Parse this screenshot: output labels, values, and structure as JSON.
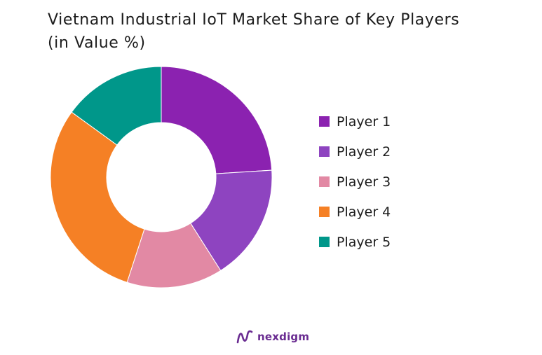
{
  "title": {
    "line1": "Vietnam Industrial IoT Market Share of Key Players",
    "line2": "(in Value %)"
  },
  "chart_data": {
    "type": "pie",
    "donut": true,
    "title": "Vietnam Industrial IoT Market Share of Key Players (in Value %)",
    "categories": [
      "Player 1",
      "Player 2",
      "Player 3",
      "Player 4",
      "Player 5"
    ],
    "values": [
      24,
      17,
      14,
      30,
      15
    ],
    "colors": [
      "#8b22b0",
      "#8e44c0",
      "#e289a4",
      "#f58025",
      "#00978a"
    ],
    "legend": "right"
  },
  "legend": [
    {
      "label": "Player 1",
      "color": "#8b22b0"
    },
    {
      "label": "Player 2",
      "color": "#8e44c0"
    },
    {
      "label": "Player 3",
      "color": "#e289a4"
    },
    {
      "label": "Player 4",
      "color": "#f58025"
    },
    {
      "label": "Player 5",
      "color": "#00978a"
    }
  ],
  "brand": {
    "name": "nexdigm",
    "logo_icon": "nexdigm-logo-icon",
    "color": "#6a2c91"
  }
}
